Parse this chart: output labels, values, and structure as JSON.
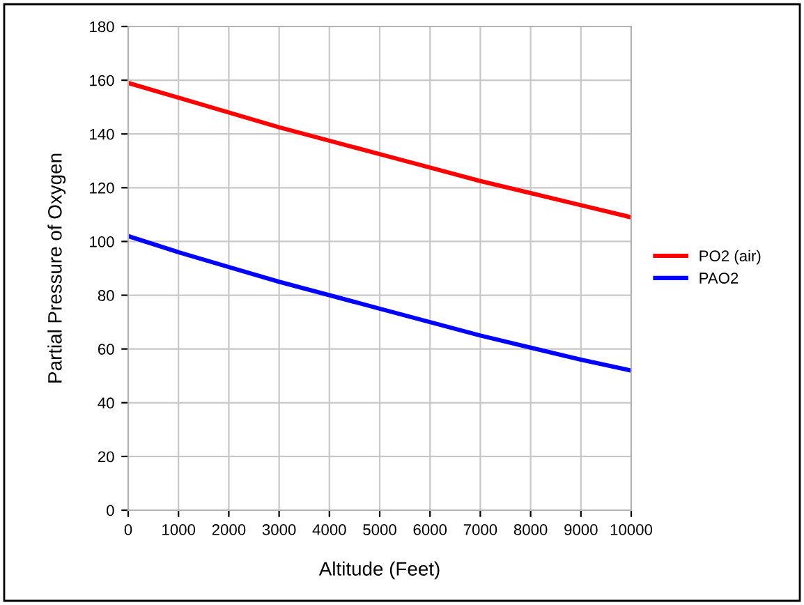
{
  "chart_data": {
    "type": "line",
    "xlabel": "Altitude (Feet)",
    "ylabel": "Partial Pressure of Oxygen",
    "x": [
      0,
      1000,
      2000,
      3000,
      4000,
      5000,
      6000,
      7000,
      8000,
      9000,
      10000
    ],
    "series": [
      {
        "name": "PO2 (air)",
        "color": "#ff0000",
        "values": [
          159,
          153.5,
          148,
          142.5,
          137.5,
          132.5,
          127.5,
          122.5,
          118,
          113.5,
          109
        ]
      },
      {
        "name": "PAO2",
        "color": "#0000ff",
        "values": [
          102,
          96,
          90.5,
          85,
          80,
          75,
          70,
          65,
          60.5,
          56,
          52
        ]
      }
    ],
    "xlim": [
      0,
      10000
    ],
    "xticks": [
      0,
      1000,
      2000,
      3000,
      4000,
      5000,
      6000,
      7000,
      8000,
      9000,
      10000
    ],
    "ylim": [
      0,
      180
    ],
    "yticks": [
      0,
      20,
      40,
      60,
      80,
      100,
      120,
      140,
      160,
      180
    ],
    "grid": true,
    "legend": "right",
    "marker": "none",
    "line_style": "solid"
  }
}
